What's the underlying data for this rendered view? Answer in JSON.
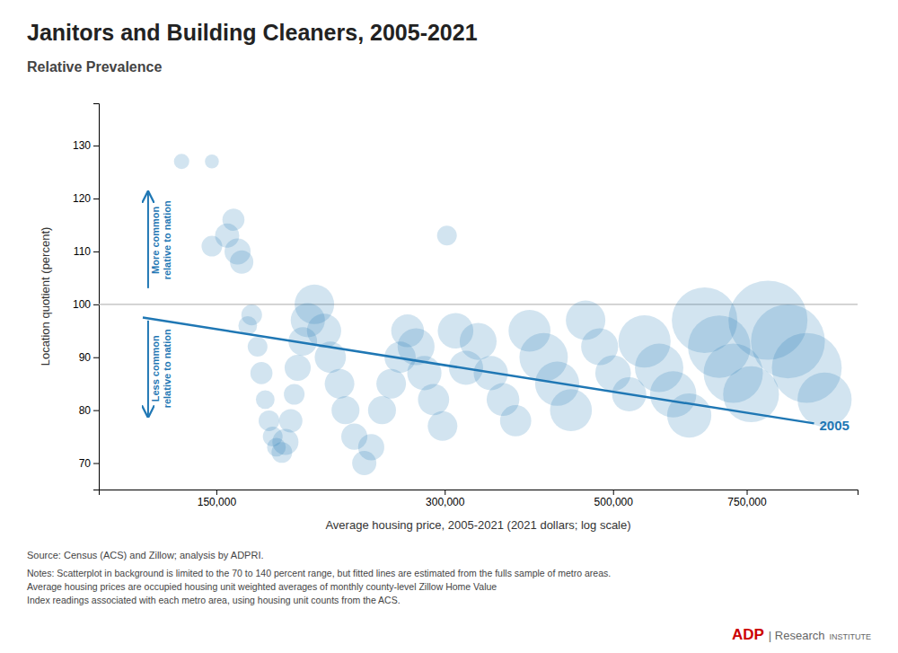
{
  "chart_data": {
    "type": "scatter",
    "title": "Janitors and Building Cleaners, 2005-2021",
    "subtitle": "Relative Prevalence",
    "xlabel": "Average housing price, 2005-2021 (2021 dollars; log scale)",
    "ylabel": "Location quotient (percent)",
    "log": "x",
    "grid": false,
    "xlim": [
      105000,
      1050000
    ],
    "ylim": [
      65,
      138
    ],
    "xticks": [
      {
        "value": 150000,
        "label": "150,000"
      },
      {
        "value": 300000,
        "label": "300,000"
      },
      {
        "value": 500000,
        "label": "500,000"
      },
      {
        "value": 750000,
        "label": "750,000"
      }
    ],
    "yticks": [
      70,
      80,
      90,
      100,
      110,
      120,
      130
    ],
    "x": [
      135000,
      148000,
      148000,
      155000,
      158000,
      160000,
      162000,
      165000,
      167000,
      170000,
      172000,
      174000,
      176000,
      178000,
      180000,
      183000,
      185000,
      188000,
      190000,
      192000,
      195000,
      198000,
      202000,
      208000,
      212000,
      218000,
      222000,
      228000,
      235000,
      240000,
      248000,
      255000,
      262000,
      268000,
      275000,
      282000,
      290000,
      298000,
      302000,
      310000,
      320000,
      332000,
      345000,
      358000,
      372000,
      388000,
      405000,
      422000,
      440000,
      460000,
      480000,
      500000,
      525000,
      550000,
      575000,
      600000,
      630000,
      660000,
      690000,
      720000,
      760000,
      800000,
      850000,
      900000,
      950000
    ],
    "values": [
      127,
      127,
      111,
      113,
      116,
      110,
      108,
      96,
      98,
      92,
      87,
      82,
      78,
      75,
      73,
      72,
      74,
      78,
      83,
      88,
      93,
      97,
      100,
      95,
      90,
      85,
      80,
      75,
      70,
      73,
      80,
      85,
      90,
      95,
      92,
      87,
      82,
      77,
      113,
      95,
      88,
      93,
      87,
      82,
      78,
      95,
      90,
      85,
      80,
      97,
      92,
      87,
      83,
      93,
      88,
      83,
      79,
      97,
      92,
      87,
      83,
      97,
      93,
      88,
      82
    ],
    "sizes": [
      120,
      100,
      220,
      300,
      250,
      350,
      280,
      180,
      220,
      200,
      250,
      180,
      220,
      200,
      180,
      220,
      350,
      280,
      220,
      350,
      420,
      600,
      800,
      600,
      500,
      450,
      400,
      350,
      300,
      350,
      400,
      450,
      500,
      550,
      700,
      600,
      500,
      450,
      200,
      650,
      600,
      700,
      600,
      550,
      500,
      900,
      1200,
      1000,
      900,
      800,
      700,
      650,
      600,
      1400,
      1200,
      1100,
      1000,
      2200,
      2000,
      1800,
      1600,
      3200,
      2800,
      2500,
      1500
    ],
    "reference_line": {
      "value": 100
    },
    "trend_line": {
      "x": [
        120000,
        920000
      ],
      "values": [
        97.5,
        77.5
      ],
      "label": "2005"
    },
    "annotations": [
      {
        "lines": [
          "More common",
          "relative to nation"
        ]
      },
      {
        "lines": [
          "Less common",
          "relative to nation"
        ]
      }
    ],
    "source": "Source: Census (ACS) and Zillow; analysis by ADPRI.",
    "notes": [
      "Notes: Scatterplot in background is limited to the 70 to 140 percent range, but fitted lines are estimated from the fulls sample of metro areas.",
      "Average housing prices are occupied housing unit weighted averages of monthly county-level Zillow Home Value",
      "Index readings associated with each metro area, using housing unit counts from the ACS."
    ],
    "logo": [
      {
        "text": "ADP",
        "color": "#cc0000"
      },
      {
        "text": "| Research"
      },
      {
        "text": "INSTITUTE"
      }
    ]
  }
}
